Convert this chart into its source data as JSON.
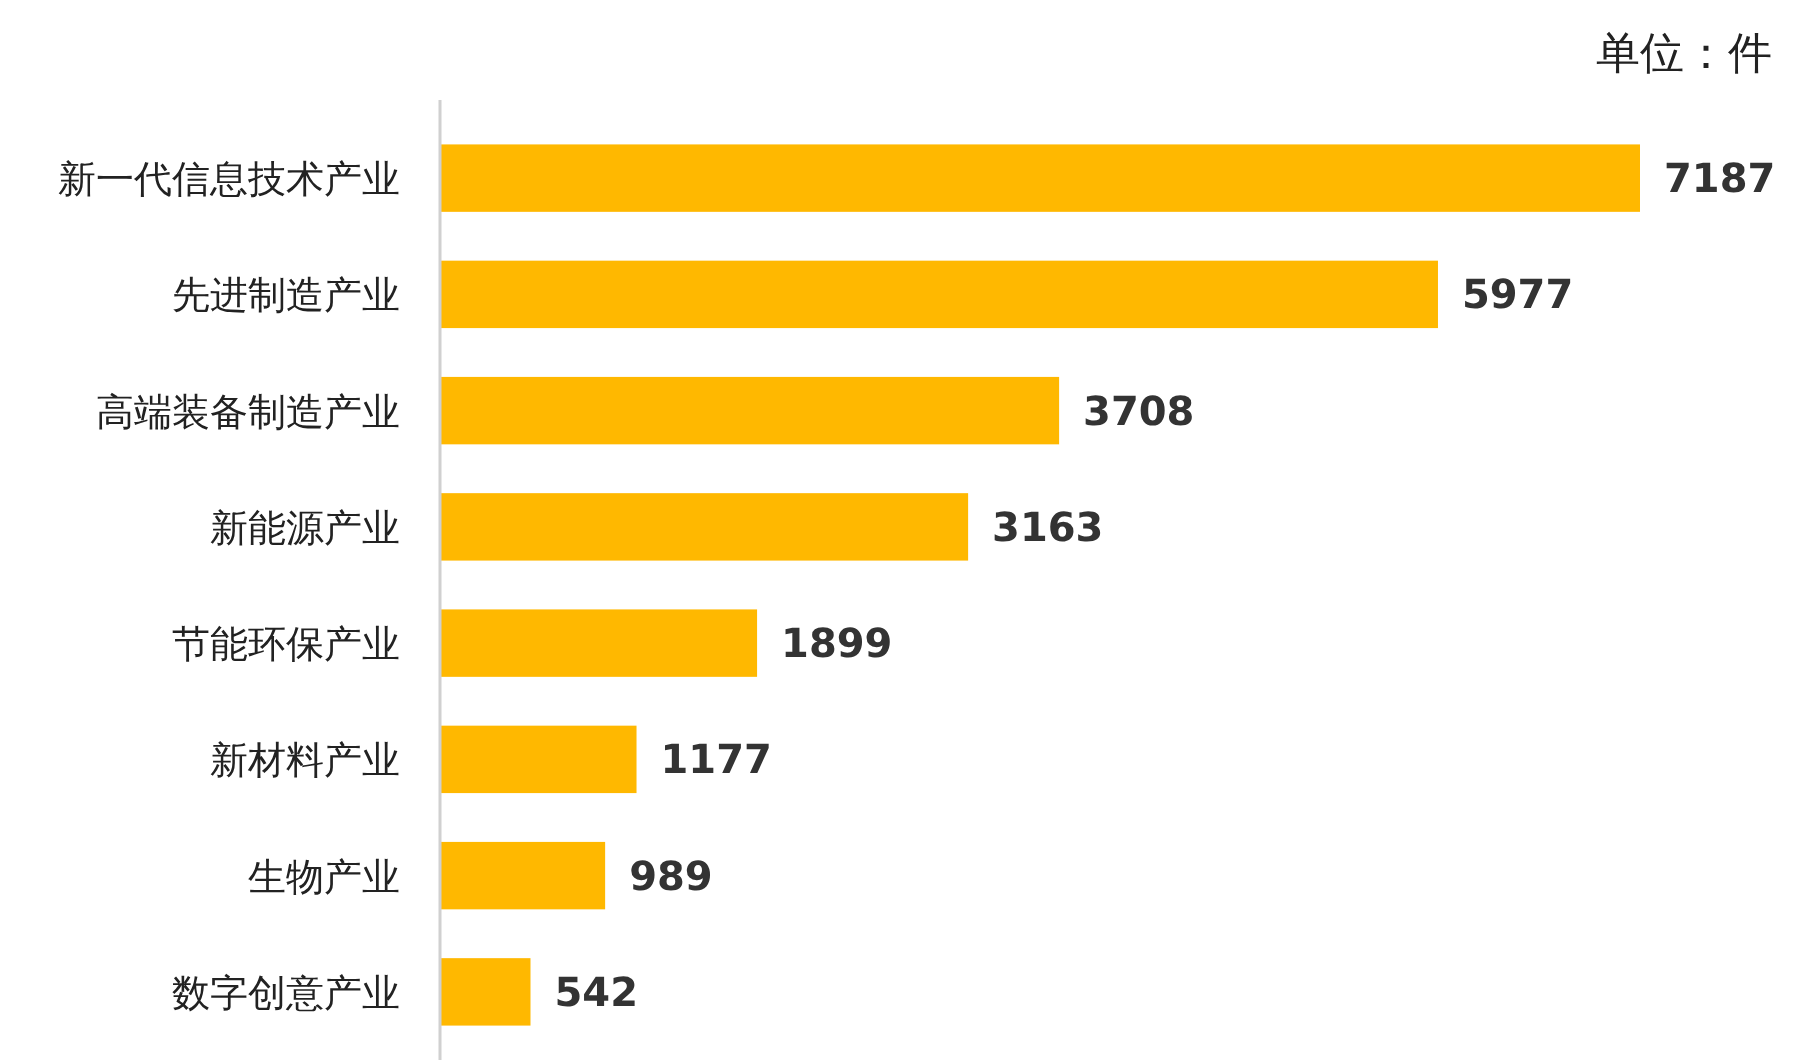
{
  "chart_data": {
    "type": "bar",
    "orientation": "horizontal",
    "categories": [
      "新一代信息技术产业",
      "先进制造产业",
      "高端装备制造产业",
      "新能源产业",
      "节能环保产业",
      "新材料产业",
      "生物产业",
      "数字创意产业"
    ],
    "values": [
      7187,
      5977,
      3708,
      3163,
      1899,
      1177,
      989,
      542
    ],
    "color": "#ffb800",
    "data_labels": true,
    "annotations": [
      "单位：件"
    ]
  }
}
